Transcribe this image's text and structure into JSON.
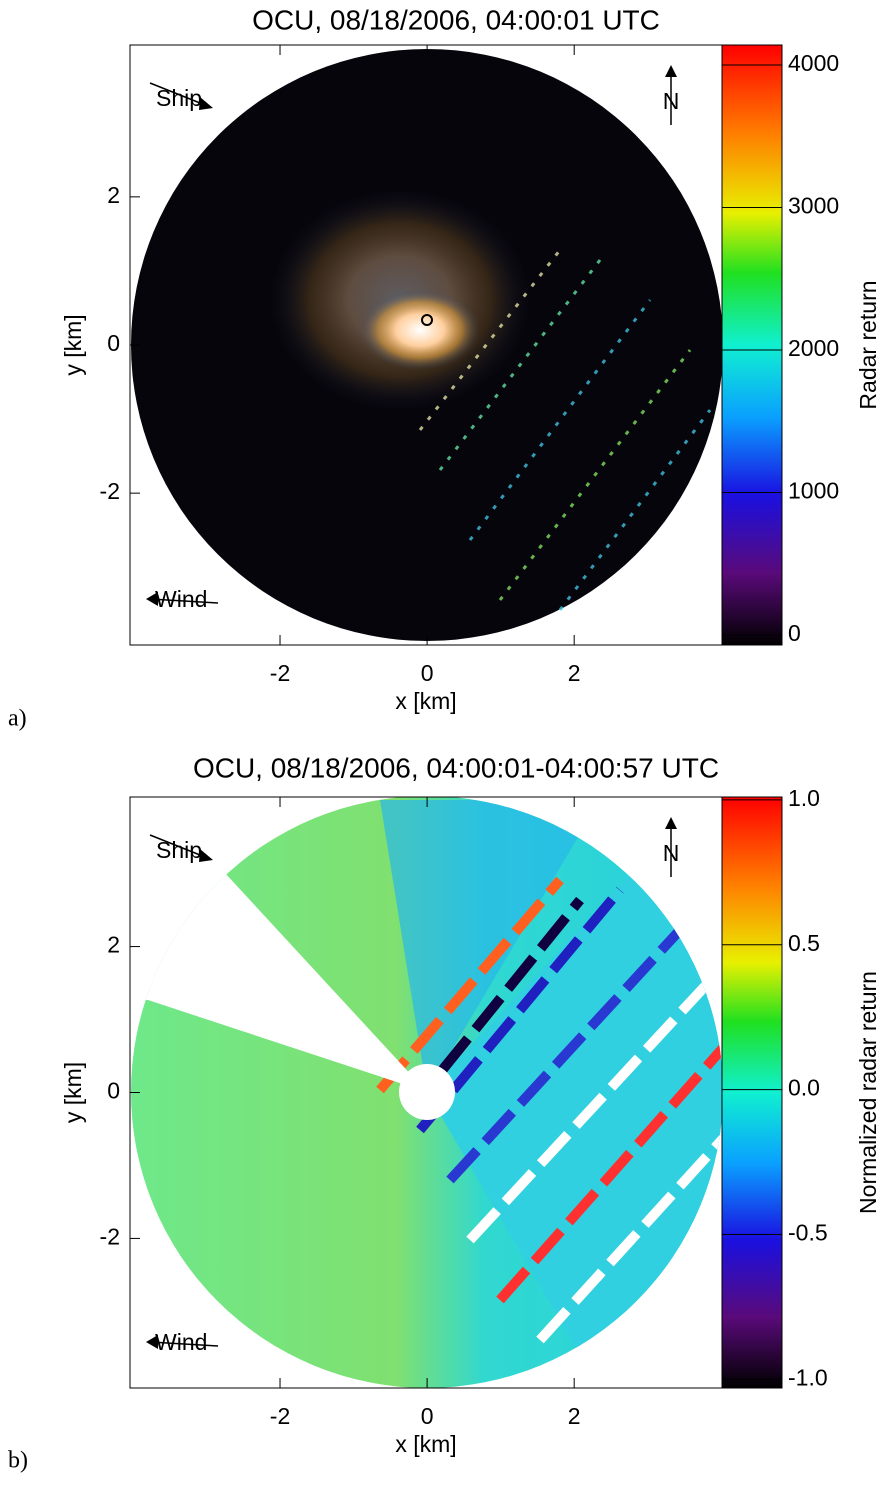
{
  "chart_data": [
    {
      "type": "radar-image",
      "title": "OCU, 08/18/2006, 04:00:01 UTC",
      "xlabel": "x [km]",
      "ylabel": "y [km]",
      "xlim": [
        -4.04,
        4.01
      ],
      "ylim": [
        -4.05,
        4.05
      ],
      "xticks": [
        -2,
        0,
        2
      ],
      "yticks": [
        -2,
        0,
        2
      ],
      "colorbar_label": "Radar return",
      "clim": [
        -70,
        4140
      ],
      "cticks": [
        0,
        1000,
        2000,
        3000,
        4000
      ],
      "annotations": [
        "Ship",
        "Wind",
        "N"
      ],
      "panel_label": "a)"
    },
    {
      "type": "radar-image",
      "title": "OCU, 08/18/2006, 04:00:01-04:00:57 UTC",
      "xlabel": "x [km]",
      "ylabel": "y [km]",
      "xlim": [
        -4.04,
        4.01
      ],
      "ylim": [
        -4.05,
        4.05
      ],
      "xticks": [
        -2,
        0,
        2
      ],
      "yticks": [
        -2,
        0,
        2
      ],
      "colorbar_label": "Normalized radar return",
      "clim": [
        -1.03,
        1.01
      ],
      "cticks": [
        {
          "value": -1.0,
          "label": "-1.0"
        },
        {
          "value": -0.5,
          "label": "-0.5"
        },
        {
          "value": 0,
          "label": "0.0"
        },
        {
          "value": 0.5,
          "label": "0.5"
        },
        {
          "value": 1.0,
          "label": "1.0"
        }
      ],
      "annotations": [
        "Ship",
        "Wind",
        "N"
      ],
      "panel_label": "b)"
    }
  ]
}
